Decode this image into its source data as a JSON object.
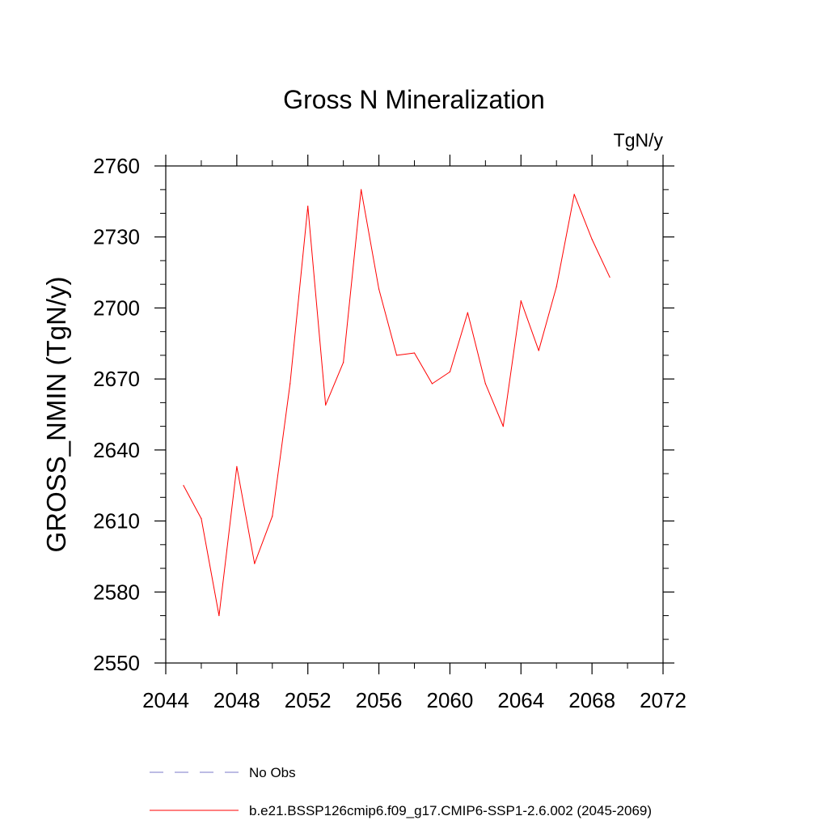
{
  "chart_data": {
    "type": "line",
    "title": "Gross N Mineralization",
    "units_label": "TgN/y",
    "ylabel": "GROSS_NMIN  (TgN/y)",
    "xlabel": "",
    "xlim": [
      2044,
      2072
    ],
    "ylim": [
      2550,
      2760
    ],
    "x_major_ticks": [
      2044,
      2048,
      2052,
      2056,
      2060,
      2064,
      2068,
      2072
    ],
    "x_tick_labels": [
      "2044",
      "2048",
      "2052",
      "2056",
      "2060",
      "2064",
      "2068",
      "2072"
    ],
    "x_minor_ticks": [
      2046,
      2050,
      2054,
      2058,
      2062,
      2066,
      2070
    ],
    "y_major_ticks": [
      2550,
      2580,
      2610,
      2640,
      2670,
      2700,
      2730,
      2760
    ],
    "y_tick_labels": [
      "2550",
      "2580",
      "2610",
      "2640",
      "2670",
      "2700",
      "2730",
      "2760"
    ],
    "y_minor_ticks": [
      2560,
      2570,
      2590,
      2600,
      2620,
      2630,
      2650,
      2660,
      2680,
      2690,
      2710,
      2720,
      2740,
      2750
    ],
    "grid": false,
    "legend_position": "bottom",
    "series": [
      {
        "name": "b.e21.BSSP126cmip6.f09_g17.CMIP6-SSP1-2.6.002 (2045-2069)",
        "color": "#ff0000",
        "style": "solid",
        "x": [
          2045,
          2046,
          2047,
          2048,
          2049,
          2050,
          2051,
          2052,
          2053,
          2054,
          2055,
          2056,
          2057,
          2058,
          2059,
          2060,
          2061,
          2062,
          2063,
          2064,
          2065,
          2066,
          2067,
          2068,
          2069
        ],
        "y": [
          2625,
          2611,
          2570,
          2633,
          2592,
          2612,
          2668,
          2743,
          2659,
          2677,
          2750,
          2708,
          2680,
          2681,
          2668,
          2673,
          2698,
          2668,
          2650,
          2703,
          2682,
          2709,
          2748,
          2729,
          2713
        ]
      }
    ],
    "legend": [
      {
        "label": "No Obs",
        "color": "#7b78c8",
        "style": "dashed"
      },
      {
        "label": "b.e21.BSSP126cmip6.f09_g17.CMIP6-SSP1-2.6.002 (2045-2069)",
        "color": "#ff0000",
        "style": "solid"
      }
    ]
  }
}
